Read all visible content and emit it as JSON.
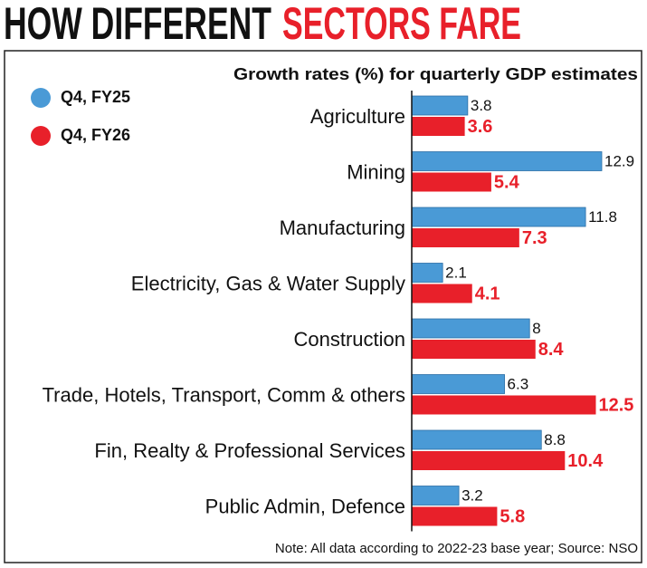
{
  "chart_data": {
    "type": "bar",
    "orientation": "horizontal",
    "title_parts": [
      "HOW DIFFERENT",
      "SECTORS FARE"
    ],
    "subtitle": "Growth rates (%) for quarterly GDP estimates",
    "categories": [
      "Agriculture",
      "Mining",
      "Manufacturing",
      "Electricity, Gas & Water Supply",
      "Construction",
      "Trade, Hotels, Transport, Comm & others",
      "Fin, Realty & Professional Services",
      "Public Admin, Defence"
    ],
    "series": [
      {
        "name": "Q4, FY25",
        "color": "#4a9ad6",
        "values": [
          3.8,
          12.9,
          11.8,
          2.1,
          8,
          6.3,
          8.8,
          3.2
        ]
      },
      {
        "name": "Q4, FY26",
        "color": "#e8202a",
        "values": [
          3.6,
          5.4,
          7.3,
          4.1,
          8.4,
          12.5,
          10.4,
          5.8
        ]
      }
    ],
    "legend": "top-left",
    "note": "Note: All data according to 2022-23 base year; Source: NSO"
  }
}
